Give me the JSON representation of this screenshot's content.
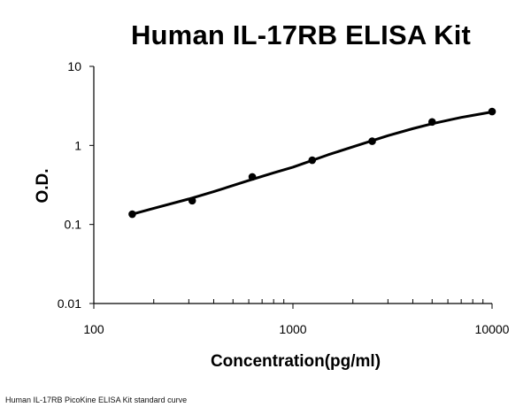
{
  "caption": "Human IL-17RB PicoKine ELISA Kit standard curve",
  "colors": {
    "line": "#000000",
    "point": "#000000",
    "background": "#ffffff"
  },
  "chart_data": {
    "type": "scatter",
    "title": "Human IL-17RB ELISA Kit",
    "xlabel": "Concentration(pg/ml)",
    "ylabel": "O.D.",
    "x_scale": "log",
    "y_scale": "log",
    "xlim": [
      100,
      10000
    ],
    "ylim": [
      0.01,
      10
    ],
    "x_ticks": [
      {
        "value": 100,
        "label": "100"
      },
      {
        "value": 1000,
        "label": "1000"
      },
      {
        "value": 10000,
        "label": "10000"
      }
    ],
    "y_ticks": [
      {
        "value": 10,
        "label": "10"
      },
      {
        "value": 1,
        "label": "1"
      },
      {
        "value": 0.1,
        "label": "0.1"
      },
      {
        "value": 0.01,
        "label": "0.01"
      }
    ],
    "grid": false,
    "legend": "none",
    "series": [
      {
        "x": [
          156,
          312,
          625,
          1250,
          2500,
          5000,
          10000
        ],
        "y": [
          0.135,
          0.2,
          0.4,
          0.65,
          1.13,
          1.98,
          2.68
        ]
      }
    ],
    "fit_curve": {
      "x": [
        156,
        200,
        300,
        400,
        600,
        800,
        1000,
        1500,
        2000,
        3000,
        4000,
        5000,
        6000,
        7000,
        8000,
        10000
      ],
      "y": [
        0.135,
        0.16,
        0.21,
        0.26,
        0.36,
        0.45,
        0.53,
        0.76,
        0.96,
        1.33,
        1.63,
        1.88,
        2.08,
        2.26,
        2.4,
        2.65
      ]
    }
  }
}
